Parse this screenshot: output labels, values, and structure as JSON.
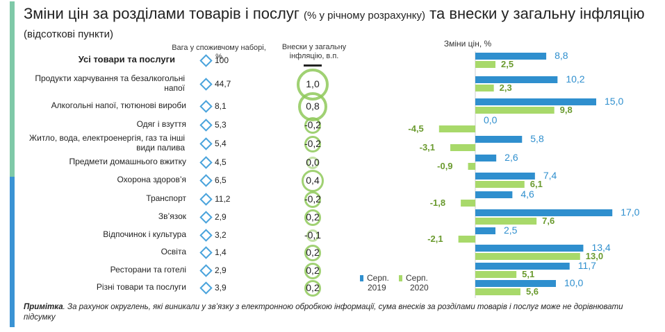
{
  "title": {
    "main_a": "Зміни цін за розділами товарів і послуг",
    "paren": "(% у річному розрахунку)",
    "main_b": "та внески у загальну інфляцію",
    "sub": "(відсоткові пункти)"
  },
  "headers": {
    "weight": "Вага у споживчому наборі, %",
    "contribution": "Внески у загальну інфляцію, в.п.",
    "change": "Зміни цін, %"
  },
  "note": {
    "label": "Примітка",
    "text": ". За рахунок округлень, які виникали у зв’язку з електронною обробкою інформації, сума внесків за розділами товарів і послуг може не дорівнювати підсумку"
  },
  "legend": [
    {
      "line1": "Серп.",
      "line2": "2019"
    },
    {
      "line1": "Серп.",
      "line2": "2020"
    }
  ],
  "colors": {
    "s2019": "#2f8fce",
    "s2020": "#a8d96a",
    "circle": "#8fc95a",
    "diamond": "#49a3dc",
    "accent_top": "#7fc9a8",
    "accent_bottom": "#3a93d4"
  },
  "rows": [
    {
      "label": "Усі товари та послуги",
      "weight": "100",
      "contribution": ""
    },
    {
      "label": "Продукти харчування та безалкогольні напої",
      "weight": "44,7",
      "contribution": "1,0"
    },
    {
      "label": "Алкогольні напої, тютюнові вироби",
      "weight": "8,1",
      "contribution": "0,8"
    },
    {
      "label": "Одяг і взуття",
      "weight": "5,3",
      "contribution": "-0,2"
    },
    {
      "label": "Житло, вода, електроенергія, газ та інші види палива",
      "weight": "5,4",
      "contribution": "-0,2"
    },
    {
      "label": "Предмети домашнього вжитку",
      "weight": "4,5",
      "contribution": "0,0"
    },
    {
      "label": "Охорона здоров’я",
      "weight": "6,5",
      "contribution": "0,4"
    },
    {
      "label": "Транспорт",
      "weight": "11,2",
      "contribution": "-0,2"
    },
    {
      "label": "Зв’язок",
      "weight": "2,9",
      "contribution": "0,2"
    },
    {
      "label": "Відпочинок і культура",
      "weight": "3,2",
      "contribution": "-0,1"
    },
    {
      "label": "Освіта",
      "weight": "1,4",
      "contribution": "0,2"
    },
    {
      "label": "Ресторани та готелі",
      "weight": "2,9",
      "contribution": "0,2"
    },
    {
      "label": "Різні товари та послуги",
      "weight": "3,9",
      "contribution": "0,2"
    }
  ],
  "chart_data": {
    "type": "bar",
    "orientation": "horizontal",
    "title": "Зміни цін, %",
    "categories": [
      "Усі товари та послуги",
      "Продукти харчування та безалкогольні напої",
      "Алкогольні напої, тютюнові вироби",
      "Одяг і взуття",
      "Житло, вода, електроенергія, газ та інші види палива",
      "Предмети домашнього вжитку",
      "Охорона здоров’я",
      "Транспорт",
      "Зв’язок",
      "Відпочинок і культура",
      "Освіта",
      "Ресторани та готелі",
      "Різні товари та послуги"
    ],
    "series": [
      {
        "name": "Серп. 2019",
        "values": [
          8.8,
          10.2,
          15.0,
          0.0,
          5.8,
          2.6,
          7.4,
          4.6,
          17.0,
          2.5,
          13.4,
          11.7,
          10.0
        ],
        "labels": [
          "8,8",
          "10,2",
          "15,0",
          "0,0",
          "5,8",
          "2,6",
          "7,4",
          "4,6",
          "17,0",
          "2,5",
          "13,4",
          "11,7",
          "10,0"
        ]
      },
      {
        "name": "Серп. 2020",
        "values": [
          2.5,
          2.3,
          9.8,
          -4.5,
          -3.1,
          -0.9,
          6.1,
          -1.8,
          7.6,
          -2.1,
          13.0,
          5.1,
          5.6
        ],
        "labels": [
          "2,5",
          "2,3",
          "9,8",
          "-4,5",
          "-3,1",
          "-0,9",
          "6,1",
          "-1,8",
          "7,6",
          "-2,1",
          "13,0",
          "5,1",
          "5,6"
        ]
      }
    ],
    "contributions": [
      null,
      1.0,
      0.8,
      -0.2,
      -0.2,
      0.0,
      0.4,
      -0.2,
      0.2,
      -0.1,
      0.2,
      0.2,
      0.2
    ],
    "weights": [
      100,
      44.7,
      8.1,
      5.3,
      5.4,
      4.5,
      6.5,
      11.2,
      2.9,
      3.2,
      1.4,
      2.9,
      3.9
    ],
    "legend_position": "bottom-left"
  }
}
